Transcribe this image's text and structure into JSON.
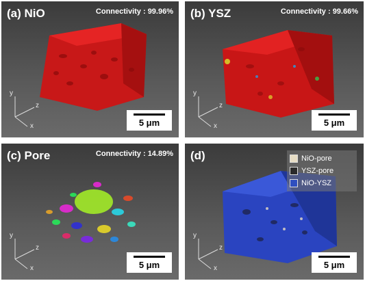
{
  "panels": [
    {
      "label": "(a)  NiO",
      "connectivity": "Connectivity : 99.96%",
      "scale": "5 μm"
    },
    {
      "label": "(b)  YSZ",
      "connectivity": "Connectivity : 99.66%",
      "scale": "5 μm"
    },
    {
      "label": "(c)  Pore",
      "connectivity": "Connectivity : 14.89%",
      "scale": "5 μm"
    },
    {
      "label": "(d)",
      "connectivity": "",
      "scale": "5 μm"
    }
  ],
  "axes": {
    "x": "x",
    "y": "y",
    "z": "z"
  },
  "legend": [
    {
      "label": "NiO-pore",
      "color": "#e6dcc4"
    },
    {
      "label": "YSZ-pore",
      "color": "#2a2a2a"
    },
    {
      "label": "NiO-YSZ",
      "color": "#2f4fbf"
    }
  ],
  "colors": {
    "nio": "#d61f1f",
    "ysz": "#d11a1a",
    "interface": "#2d46c8"
  }
}
